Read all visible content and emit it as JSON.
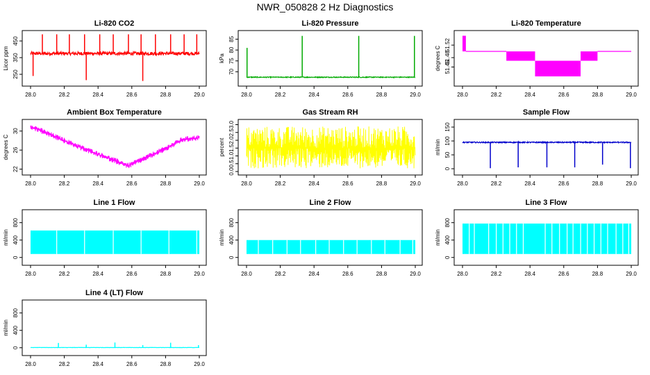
{
  "page_title": "NWR_050828  2 Hz Diagnostics",
  "chart_data": [
    {
      "type": "line",
      "title": "Li-820 CO2",
      "ylabel": "Licor ppm",
      "color": "#ff0000",
      "xlim": [
        28.0,
        29.0
      ],
      "x_ticks": [
        "28.0",
        "28.2",
        "28.4",
        "28.6",
        "28.8",
        "29.0"
      ],
      "ylim": [
        200,
        500
      ],
      "y_ticks": [
        250,
        350,
        450
      ],
      "baseline": 375,
      "noise": 10,
      "band_low": null,
      "spikes": [
        {
          "x": 28.015,
          "y": 240
        },
        {
          "x": 28.07,
          "y": 490
        },
        {
          "x": 28.155,
          "y": 490
        },
        {
          "x": 28.23,
          "y": 490
        },
        {
          "x": 28.32,
          "y": 490
        },
        {
          "x": 28.33,
          "y": 215
        },
        {
          "x": 28.41,
          "y": 490
        },
        {
          "x": 28.49,
          "y": 490
        },
        {
          "x": 28.58,
          "y": 490
        },
        {
          "x": 28.655,
          "y": 490
        },
        {
          "x": 28.665,
          "y": 210
        },
        {
          "x": 28.74,
          "y": 490
        },
        {
          "x": 28.83,
          "y": 490
        },
        {
          "x": 28.91,
          "y": 490
        },
        {
          "x": 28.985,
          "y": 490
        }
      ]
    },
    {
      "type": "line",
      "title": "Li-820 Pressure",
      "ylabel": "kPa",
      "color": "#00aa00",
      "xlim": [
        28.0,
        29.0
      ],
      "x_ticks": [
        "28.0",
        "28.2",
        "28.4",
        "28.6",
        "28.8",
        "29.0"
      ],
      "ylim": [
        65,
        88
      ],
      "y_ticks": [
        70,
        75,
        80,
        85
      ],
      "baseline": 67.5,
      "noise": 0.2,
      "band_low": null,
      "spikes": [
        {
          "x": 28.003,
          "y": 81
        },
        {
          "x": 28.33,
          "y": 86.5
        },
        {
          "x": 28.665,
          "y": 86.5
        },
        {
          "x": 28.995,
          "y": 86.5
        }
      ]
    },
    {
      "type": "line",
      "title": "Li-820 Temperature",
      "ylabel": "degrees C",
      "color": "#ff00ff",
      "xlim": [
        28.0,
        29.0
      ],
      "x_ticks": [
        "28.0",
        "28.2",
        "28.4",
        "28.6",
        "28.8",
        "29.0"
      ],
      "ylim": [
        51.4,
        51.56
      ],
      "y_ticks": [
        51.45,
        51.48,
        51.52
      ],
      "y_tick_labels": [
        "51.45",
        "51.48",
        "51.52"
      ],
      "steps": [
        {
          "x0": 28.0,
          "x1": 28.02,
          "lo": 51.5,
          "hi": 51.55
        },
        {
          "x0": 28.02,
          "x1": 28.26,
          "lo": 51.5,
          "hi": 51.5
        },
        {
          "x0": 28.26,
          "x1": 28.43,
          "lo": 51.47,
          "hi": 51.5
        },
        {
          "x0": 28.43,
          "x1": 28.7,
          "lo": 51.42,
          "hi": 51.47
        },
        {
          "x0": 28.7,
          "x1": 28.8,
          "lo": 51.47,
          "hi": 51.5
        },
        {
          "x0": 28.8,
          "x1": 29.0,
          "lo": 51.5,
          "hi": 51.5
        }
      ]
    },
    {
      "type": "line",
      "title": "Ambient Box Temperature",
      "ylabel": "degrees C",
      "color": "#ff00ff",
      "xlim": [
        28.0,
        29.0
      ],
      "x_ticks": [
        "28.0",
        "28.2",
        "28.4",
        "28.6",
        "28.8",
        "29.0"
      ],
      "ylim": [
        21.5,
        32
      ],
      "y_ticks": [
        22,
        26,
        30
      ],
      "trend": [
        [
          28.0,
          31.0
        ],
        [
          28.3,
          26.5
        ],
        [
          28.58,
          22.7
        ],
        [
          28.8,
          26.3
        ],
        [
          28.9,
          28.2
        ],
        [
          29.0,
          28.6
        ]
      ],
      "noise": 1.0
    },
    {
      "type": "line",
      "title": "Gas Stream RH",
      "ylabel": "percent",
      "color": "#ffff00",
      "xlim": [
        28.0,
        29.0
      ],
      "x_ticks": [
        "28.0",
        "28.2",
        "28.4",
        "28.6",
        "28.8",
        "29.0"
      ],
      "ylim": [
        0,
        3.2
      ],
      "y_ticks": [
        0.0,
        0.5,
        1.0,
        1.5,
        2.0,
        2.5,
        3.0
      ],
      "y_tick_labels": [
        "0.0",
        "0.5",
        "1.0",
        "1.5",
        "2.0",
        "2.5",
        "3.0"
      ],
      "band_low": 0.2,
      "band_high": 2.9,
      "center": 1.5
    },
    {
      "type": "line",
      "title": "Sample Flow",
      "ylabel": "ml/min",
      "color": "#0000cc",
      "xlim": [
        28.0,
        29.0
      ],
      "x_ticks": [
        "28.0",
        "28.2",
        "28.4",
        "28.6",
        "28.8",
        "29.0"
      ],
      "ylim": [
        -10,
        170
      ],
      "y_ticks": [
        0,
        50,
        100,
        150
      ],
      "baseline": 95,
      "noise": 2,
      "band_low": null,
      "spikes": [
        {
          "x": 28.165,
          "y": 2
        },
        {
          "x": 28.33,
          "y": 5
        },
        {
          "x": 28.5,
          "y": 5
        },
        {
          "x": 28.665,
          "y": 5
        },
        {
          "x": 28.83,
          "y": 15
        },
        {
          "x": 28.995,
          "y": 2
        }
      ]
    },
    {
      "type": "line",
      "title": "Line 1 Flow",
      "ylabel": "ml/min",
      "color": "#00ffff",
      "xlim": [
        28.0,
        29.0
      ],
      "x_ticks": [
        "28.0",
        "28.2",
        "28.4",
        "28.6",
        "28.8",
        "29.0"
      ],
      "ylim": [
        -100,
        1050
      ],
      "y_ticks": [
        0,
        400,
        800
      ],
      "band_low": 80,
      "band_high": 620,
      "gaps": [
        28.155,
        28.32,
        28.49,
        28.655,
        28.82,
        28.985
      ]
    },
    {
      "type": "line",
      "title": "Line 2 Flow",
      "ylabel": "ml/min",
      "color": "#00ffff",
      "xlim": [
        28.0,
        29.0
      ],
      "x_ticks": [
        "28.0",
        "28.2",
        "28.4",
        "28.6",
        "28.8",
        "29.0"
      ],
      "ylim": [
        -100,
        1050
      ],
      "y_ticks": [
        0,
        400,
        800
      ],
      "band_low": 80,
      "band_high": 400,
      "gaps": [
        28.07,
        28.155,
        28.24,
        28.32,
        28.41,
        28.49,
        28.575,
        28.655,
        28.74,
        28.82,
        28.91,
        28.985
      ]
    },
    {
      "type": "line",
      "title": "Line 3 Flow",
      "ylabel": "ml/min",
      "color": "#00ffff",
      "xlim": [
        28.0,
        29.0
      ],
      "x_ticks": [
        "28.0",
        "28.2",
        "28.4",
        "28.6",
        "28.8",
        "29.0"
      ],
      "ylim": [
        -100,
        1050
      ],
      "y_ticks": [
        0,
        400,
        800
      ],
      "band_low": 80,
      "band_high": 780,
      "gaps": [
        28.04,
        28.07,
        28.155,
        28.2,
        28.24,
        28.28,
        28.32,
        28.36,
        28.49,
        28.53,
        28.575,
        28.62,
        28.655,
        28.7,
        28.74,
        28.78,
        28.82,
        28.86,
        28.91,
        28.95,
        28.985
      ]
    },
    {
      "type": "line",
      "title": "Line 4 (LT) Flow",
      "ylabel": "ml/min",
      "color": "#00ffff",
      "xlim": [
        28.0,
        29.0
      ],
      "x_ticks": [
        "28.0",
        "28.2",
        "28.4",
        "28.6",
        "28.8",
        "29.0"
      ],
      "ylim": [
        -100,
        1050
      ],
      "y_ticks": [
        0,
        400,
        800
      ],
      "baseline": 5,
      "noise": 3,
      "band_low": null,
      "spikes": [
        {
          "x": 28.165,
          "y": 110
        },
        {
          "x": 28.33,
          "y": 70
        },
        {
          "x": 28.5,
          "y": 120
        },
        {
          "x": 28.665,
          "y": 60
        },
        {
          "x": 28.83,
          "y": 115
        },
        {
          "x": 28.995,
          "y": 60
        }
      ]
    }
  ]
}
